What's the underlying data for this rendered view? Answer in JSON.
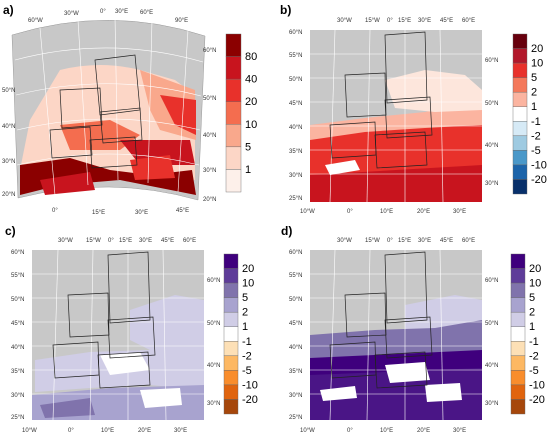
{
  "panels": [
    {
      "label": "a)",
      "lat_labels_left": [
        "50°N",
        "40°N",
        "30°N",
        "20°N"
      ],
      "lat_labels_right": [
        "60°N",
        "50°N",
        "40°N",
        "30°N",
        "20°N"
      ],
      "lon_labels_top": [
        "60°W",
        "30°W",
        "0°",
        "30°E",
        "60°E",
        "90°E"
      ],
      "lon_labels_bottom": [
        "0°",
        "15°E",
        "30°E",
        "45°E"
      ],
      "colorbar": {
        "labels": [
          "80",
          "40",
          "20",
          "10",
          "5",
          "1"
        ],
        "colors": [
          "#8b0000",
          "#c8141e",
          "#e8312b",
          "#f46d4f",
          "#f9a88c",
          "#fcd6c6",
          "#fdf0ea"
        ]
      }
    },
    {
      "label": "b)",
      "lat_labels_left": [
        "60°N",
        "55°N",
        "50°N",
        "45°N",
        "40°N",
        "35°N",
        "30°N",
        "25°N"
      ],
      "lat_labels_right": [
        "60°N",
        "50°N",
        "40°N",
        "30°N"
      ],
      "lon_labels_top": [
        "30°W",
        "15°W",
        "0°",
        "15°E",
        "30°E",
        "45°E",
        "60°E"
      ],
      "lon_labels_bottom": [
        "10°W",
        "0°",
        "10°E",
        "20°E",
        "30°E"
      ],
      "colorbar": {
        "labels": [
          "20",
          "10",
          "5",
          "2",
          "1",
          "-1",
          "-2",
          "-5",
          "-10",
          "-20"
        ],
        "colors": [
          "#67000d",
          "#b2182b",
          "#e8312b",
          "#f4795b",
          "#fbb4a0",
          "#ffffff",
          "#d6eaf6",
          "#9ecae1",
          "#4a98c9",
          "#1c64aa",
          "#08306b"
        ]
      }
    },
    {
      "label": "c)",
      "lat_labels_left": [
        "60°N",
        "55°N",
        "50°N",
        "45°N",
        "40°N",
        "35°N",
        "30°N",
        "25°N"
      ],
      "lat_labels_right": [
        "60°N",
        "50°N",
        "40°N",
        "30°N"
      ],
      "lon_labels_top": [
        "30°W",
        "15°W",
        "0°",
        "15°E",
        "30°E",
        "45°E",
        "60°E"
      ],
      "lon_labels_bottom": [
        "10°W",
        "0°",
        "10°E",
        "20°E",
        "30°E"
      ],
      "colorbar": {
        "labels": [
          "20",
          "10",
          "5",
          "2",
          "1",
          "-1",
          "-2",
          "-5",
          "-10",
          "-20"
        ],
        "colors": [
          "#3f007d",
          "#5e3c99",
          "#8073ac",
          "#a8a3cf",
          "#d0cde6",
          "#ffffff",
          "#fde0b6",
          "#fdb863",
          "#f98d2c",
          "#e0640e",
          "#a6470b"
        ]
      }
    },
    {
      "label": "d)",
      "lat_labels_left": [
        "60°N",
        "55°N",
        "50°N",
        "45°N",
        "40°N",
        "35°N",
        "30°N",
        "25°N"
      ],
      "lat_labels_right": [
        "60°N",
        "50°N",
        "40°N",
        "30°N"
      ],
      "lon_labels_top": [
        "30°W",
        "15°W",
        "0°",
        "15°E",
        "30°E",
        "45°E",
        "60°E"
      ],
      "lon_labels_bottom": [
        "10°W",
        "0°",
        "10°E",
        "20°E",
        "30°E"
      ],
      "colorbar": {
        "labels": [
          "20",
          "10",
          "5",
          "2",
          "1",
          "-1",
          "-2",
          "-5",
          "-10",
          "-20"
        ],
        "colors": [
          "#3f007d",
          "#5e3c99",
          "#8073ac",
          "#a8a3cf",
          "#d0cde6",
          "#ffffff",
          "#fde0b6",
          "#fdb863",
          "#f98d2c",
          "#e0640e",
          "#a6470b"
        ]
      }
    }
  ],
  "colors": {
    "ocean_gray": "#c8c8c8",
    "land_outline": "#2a2a2a",
    "grid": "#ffffff"
  }
}
